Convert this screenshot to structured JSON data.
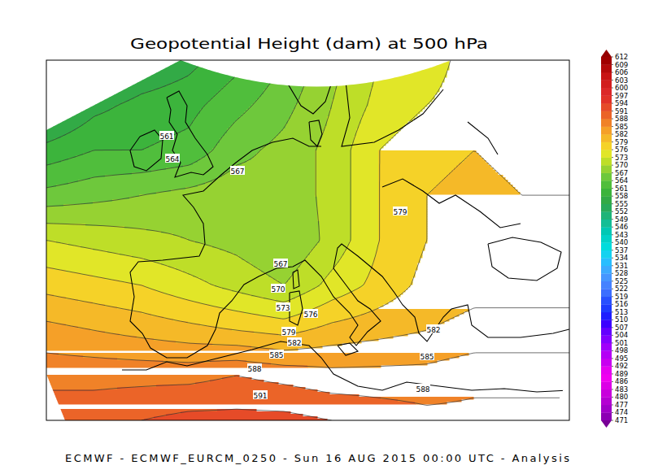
{
  "chart_data": {
    "type": "contour_map",
    "title": "Geopotential Height (dam) at 500 hPa",
    "footer": "ECMWF - ECMWF_EURCM_0250 - Sun 16 AUG 2015 00:00 UTC - Analysis",
    "colorbar": {
      "range": [
        471,
        612
      ],
      "ticks": [
        471,
        474,
        477,
        480,
        483,
        486,
        489,
        492,
        495,
        498,
        501,
        504,
        507,
        510,
        513,
        516,
        519,
        522,
        525,
        528,
        531,
        534,
        537,
        540,
        543,
        546,
        549,
        552,
        555,
        558,
        561,
        564,
        567,
        570,
        573,
        576,
        579,
        582,
        585,
        588,
        591,
        594,
        597,
        600,
        603,
        606,
        609,
        612
      ],
      "colors": [
        "#8c00b4",
        "#a000c8",
        "#b400d2",
        "#c800dc",
        "#dc00e6",
        "#f000f0",
        "#e600f0",
        "#c800f0",
        "#b400f5",
        "#a000fa",
        "#8200ff",
        "#6400ff",
        "#3c00ff",
        "#1e1eff",
        "#1e3cff",
        "#2850ff",
        "#3c6eff",
        "#4682ff",
        "#4696ff",
        "#3caaff",
        "#28beff",
        "#14d2f0",
        "#00dcdc",
        "#00d2c8",
        "#00c8b4",
        "#14be96",
        "#1eb478",
        "#28aa5a",
        "#32aa46",
        "#3cb43c",
        "#50be3c",
        "#6ec83c",
        "#96d232",
        "#bede28",
        "#e1e628",
        "#f5d228",
        "#f5b928",
        "#f5a028",
        "#f08228",
        "#eb6428",
        "#e64b28",
        "#e13228",
        "#dc2828",
        "#d21e1e",
        "#c81414",
        "#b40a0a",
        "#a00000"
      ],
      "under_color": "#780096",
      "over_color": "#960000"
    },
    "field": {
      "values": [
        [
          549,
          552,
          555,
          557,
          560,
          564,
          569,
          573,
          575,
          577,
          578,
          578
        ],
        [
          553,
          557,
          559,
          560,
          563,
          566,
          570,
          574,
          576,
          577,
          578,
          578
        ],
        [
          559,
          561,
          561,
          562,
          566,
          568,
          571,
          576,
          578,
          579,
          578,
          578
        ],
        [
          565,
          566,
          567,
          568,
          569,
          568,
          571,
          576,
          579,
          580,
          579,
          579
        ],
        [
          573,
          572,
          571,
          570,
          569,
          567,
          571,
          576,
          579,
          580,
          580,
          580
        ],
        [
          578,
          577,
          576,
          574,
          572,
          570,
          574,
          577,
          580,
          581,
          581,
          581
        ],
        [
          583,
          582,
          581,
          580,
          579,
          578,
          580,
          581,
          582,
          583,
          583,
          583
        ],
        [
          587,
          587,
          587,
          587,
          588,
          587,
          586,
          586,
          586,
          587,
          587,
          587
        ],
        [
          590,
          590,
          591,
          592,
          592,
          592,
          591,
          590,
          589,
          589,
          589,
          589
        ]
      ]
    },
    "contour_labels": [
      561,
      564,
      567,
      579,
      567,
      570,
      573,
      576,
      579,
      582,
      585,
      582,
      585,
      588,
      591,
      588
    ]
  }
}
